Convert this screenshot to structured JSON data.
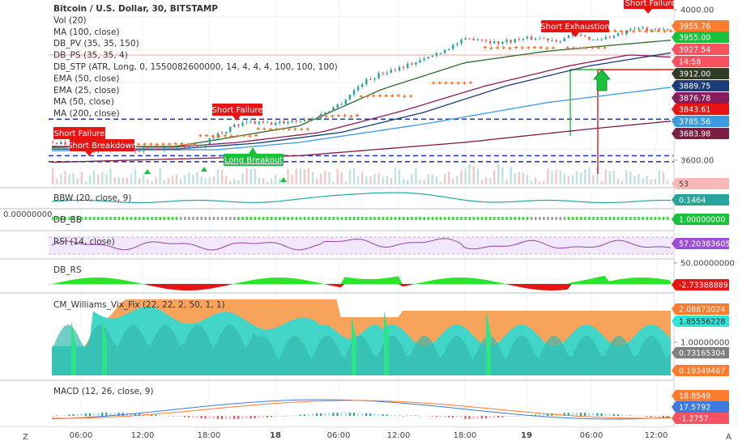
{
  "colors": {
    "up": "#26a69a",
    "down": "#ef5350",
    "red_label": "#e81414",
    "green_label": "#18c23a",
    "orange_label": "#ff7b2e",
    "grid": "#f0f3fa",
    "axis_bg": "#ffffff"
  },
  "corner_icons": {
    "left": "Z",
    "right": "A"
  },
  "panes": [
    {
      "id": "price",
      "legend": [
        "Bitcoin / U.S. Dollar, 30, BITSTAMP",
        "Vol (20)",
        "MA (100, close)",
        "DB_PV (35, 35, 150)",
        "DB_PS (35, 35, 4)",
        "DB_STP (ATR, Long, 0, 1550082600000, 14, 4, 4, 4, 100, 100, 100)",
        "EMA (50, close)",
        "EMA (25, close)",
        "MA (50, close)",
        "MA (200, close)"
      ],
      "axis_ticks": [
        "4000.00",
        "3600.00"
      ],
      "axis_tags": [
        {
          "text": "3955.76",
          "color": "#ff7b2e",
          "fg": "#ffffff"
        },
        {
          "text": "3955.00",
          "color": "#18c23a",
          "fg": "#ffffff"
        },
        {
          "text": "3927.54",
          "color": "#f7525f",
          "fg": "#ffffff"
        },
        {
          "text": "14:58",
          "color": "#f7525f",
          "fg": "#ffffff"
        },
        {
          "text": "3912.00",
          "color": "#2f3c26",
          "fg": "#ffffff"
        },
        {
          "text": "3889.75",
          "color": "#1c3d7a",
          "fg": "#ffffff"
        },
        {
          "text": "3876.78",
          "color": "#8b1c5a",
          "fg": "#ffffff"
        },
        {
          "text": "3843.61",
          "color": "#e81414",
          "fg": "#ffffff"
        },
        {
          "text": "3785.56",
          "color": "#3d9ae0",
          "fg": "#ffffff"
        },
        {
          "text": "3683.98",
          "color": "#7a1e44",
          "fg": "#ffffff"
        },
        {
          "text": "53",
          "color": "#f8b8b8",
          "fg": "#444444"
        }
      ],
      "annotations": [
        {
          "text": "Short Failure",
          "type": "red"
        },
        {
          "text": "Short Breakdown",
          "type": "red"
        },
        {
          "text": "Short Failure",
          "type": "red"
        },
        {
          "text": "Long Breakout",
          "type": "green"
        },
        {
          "text": "Short Exhaustion",
          "type": "red"
        },
        {
          "text": "Short Failure",
          "type": "red"
        }
      ]
    },
    {
      "id": "bbw",
      "legend": [
        "BBW (20, close, 9)"
      ],
      "axis_tags": [
        {
          "text": "0.1464",
          "color": "#26a69a",
          "fg": "#ffffff"
        }
      ]
    },
    {
      "id": "dbbb",
      "legend": [
        "DB_BB"
      ],
      "left_value": "0.00000000",
      "axis_tags": [
        {
          "text": "1.00000000",
          "color": "#18c23a",
          "fg": "#ffffff"
        }
      ]
    },
    {
      "id": "rsi",
      "legend": [
        "RSI (14, close)"
      ],
      "axis_tags": [
        {
          "text": "57.20383605",
          "color": "#9c4fd6",
          "fg": "#ffffff"
        }
      ]
    },
    {
      "id": "dbrs",
      "legend": [
        "DB_RS"
      ],
      "axis_ticks": [
        "50.00000000"
      ],
      "axis_tags": [
        {
          "text": "-2.73388889",
          "color": "#e81414",
          "fg": "#ffffff"
        }
      ]
    },
    {
      "id": "cmw",
      "legend": [
        "CM_Williams_Vix_Fix (22, 22, 2, 50, 1, 1)"
      ],
      "axis_ticks": [
        "1.00000000"
      ],
      "axis_tags": [
        {
          "text": "2.08873024",
          "color": "#ff7b2e",
          "fg": "#ffffff"
        },
        {
          "text": "1.85556228",
          "color": "#2ee6d6",
          "fg": "#222222"
        },
        {
          "text": "0.73165304",
          "color": "#808080",
          "fg": "#ffffff"
        },
        {
          "text": "0.19349467",
          "color": "#ff7b2e",
          "fg": "#ffffff"
        }
      ]
    },
    {
      "id": "macd",
      "legend": [
        "MACD (12, 26, close, 9)"
      ],
      "axis_tags": [
        {
          "text": "18.8549",
          "color": "#ff7b2e",
          "fg": "#ffffff"
        },
        {
          "text": "17.5792",
          "color": "#3d7ae0",
          "fg": "#ffffff"
        },
        {
          "text": "-1.2757",
          "color": "#f7525f",
          "fg": "#ffffff"
        }
      ]
    }
  ],
  "time_axis": [
    "06:00",
    "12:00",
    "18:00",
    "18",
    "06:00",
    "12:00",
    "18:00",
    "19",
    "06:00",
    "12:00"
  ],
  "chart_data": {
    "type": "candlestick",
    "title": "Bitcoin / U.S. Dollar, 30, BITSTAMP",
    "ylim": [
      3520,
      4020
    ],
    "price_path": [
      [
        0,
        3620
      ],
      [
        10,
        3615
      ],
      [
        20,
        3595
      ],
      [
        30,
        3600
      ],
      [
        40,
        3598
      ],
      [
        50,
        3602
      ],
      [
        60,
        3605
      ],
      [
        72,
        3612
      ],
      [
        80,
        3645
      ],
      [
        88,
        3670
      ],
      [
        96,
        3680
      ],
      [
        106,
        3676
      ],
      [
        116,
        3685
      ],
      [
        126,
        3690
      ],
      [
        140,
        3740
      ],
      [
        150,
        3800
      ],
      [
        160,
        3830
      ],
      [
        170,
        3850
      ],
      [
        180,
        3870
      ],
      [
        190,
        3900
      ],
      [
        198,
        3925
      ],
      [
        205,
        3935
      ],
      [
        215,
        3920
      ],
      [
        225,
        3930
      ],
      [
        235,
        3935
      ],
      [
        245,
        3928
      ],
      [
        252,
        3945
      ],
      [
        262,
        3930
      ],
      [
        272,
        3940
      ],
      [
        284,
        3965
      ],
      [
        292,
        3958
      ],
      [
        300,
        3955
      ]
    ],
    "ma_lines": [
      {
        "name": "EMA (25, close)",
        "color": "#2e6b2e",
        "points": [
          [
            0,
            3605
          ],
          [
            60,
            3608
          ],
          [
            80,
            3628
          ],
          [
            120,
            3670
          ],
          [
            160,
            3780
          ],
          [
            200,
            3860
          ],
          [
            240,
            3895
          ],
          [
            270,
            3912
          ],
          [
            300,
            3928
          ]
        ]
      },
      {
        "name": "EMA (50, close)",
        "color": "#8b1c5a",
        "points": [
          [
            0,
            3608
          ],
          [
            60,
            3606
          ],
          [
            90,
            3620
          ],
          [
            130,
            3650
          ],
          [
            170,
            3715
          ],
          [
            210,
            3790
          ],
          [
            250,
            3850
          ],
          [
            280,
            3884
          ],
          [
            300,
            3877
          ]
        ]
      },
      {
        "name": "MA (50, close)",
        "color": "#1c3d7a",
        "points": [
          [
            0,
            3600
          ],
          [
            60,
            3600
          ],
          [
            100,
            3618
          ],
          [
            140,
            3650
          ],
          [
            180,
            3710
          ],
          [
            220,
            3790
          ],
          [
            260,
            3850
          ],
          [
            290,
            3880
          ],
          [
            300,
            3890
          ]
        ]
      },
      {
        "name": "MA (100, close)",
        "color": "#3d9ae0",
        "points": [
          [
            0,
            3595
          ],
          [
            80,
            3598
          ],
          [
            120,
            3620
          ],
          [
            180,
            3675
          ],
          [
            240,
            3740
          ],
          [
            300,
            3786
          ]
        ]
      },
      {
        "name": "MA (200, close)",
        "color": "#7a1e44",
        "points": [
          [
            0,
            3560
          ],
          [
            120,
            3580
          ],
          [
            200,
            3620
          ],
          [
            260,
            3660
          ],
          [
            300,
            3684
          ]
        ]
      }
    ]
  }
}
